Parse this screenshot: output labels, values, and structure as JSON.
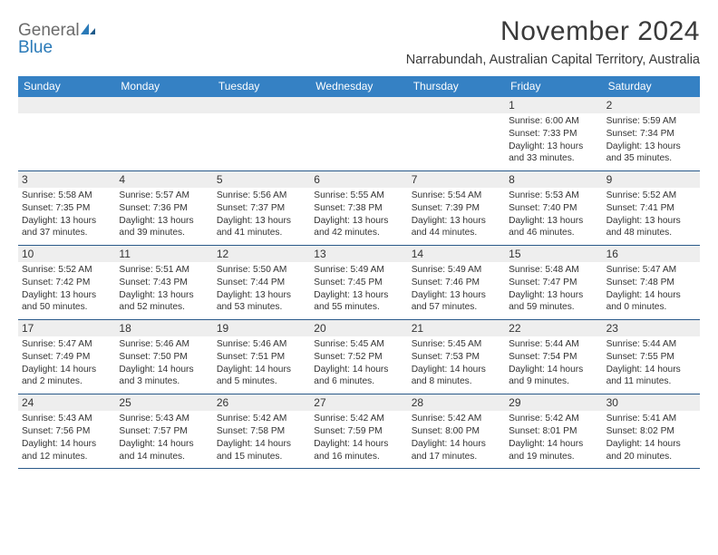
{
  "logo": {
    "line1": "General",
    "line2": "Blue"
  },
  "title": "November 2024",
  "location": "Narrabundah, Australian Capital Territory, Australia",
  "colors": {
    "header_bg": "#3581c4",
    "header_text": "#ffffff",
    "daynum_bg": "#eeeeee",
    "week_border": "#2a5a8a",
    "text": "#333333",
    "logo_gray": "#6b6b6b",
    "logo_blue": "#2a7ab8"
  },
  "day_names": [
    "Sunday",
    "Monday",
    "Tuesday",
    "Wednesday",
    "Thursday",
    "Friday",
    "Saturday"
  ],
  "weeks": [
    [
      {
        "n": "",
        "t": ""
      },
      {
        "n": "",
        "t": ""
      },
      {
        "n": "",
        "t": ""
      },
      {
        "n": "",
        "t": ""
      },
      {
        "n": "",
        "t": ""
      },
      {
        "n": "1",
        "t": "Sunrise: 6:00 AM\nSunset: 7:33 PM\nDaylight: 13 hours and 33 minutes."
      },
      {
        "n": "2",
        "t": "Sunrise: 5:59 AM\nSunset: 7:34 PM\nDaylight: 13 hours and 35 minutes."
      }
    ],
    [
      {
        "n": "3",
        "t": "Sunrise: 5:58 AM\nSunset: 7:35 PM\nDaylight: 13 hours and 37 minutes."
      },
      {
        "n": "4",
        "t": "Sunrise: 5:57 AM\nSunset: 7:36 PM\nDaylight: 13 hours and 39 minutes."
      },
      {
        "n": "5",
        "t": "Sunrise: 5:56 AM\nSunset: 7:37 PM\nDaylight: 13 hours and 41 minutes."
      },
      {
        "n": "6",
        "t": "Sunrise: 5:55 AM\nSunset: 7:38 PM\nDaylight: 13 hours and 42 minutes."
      },
      {
        "n": "7",
        "t": "Sunrise: 5:54 AM\nSunset: 7:39 PM\nDaylight: 13 hours and 44 minutes."
      },
      {
        "n": "8",
        "t": "Sunrise: 5:53 AM\nSunset: 7:40 PM\nDaylight: 13 hours and 46 minutes."
      },
      {
        "n": "9",
        "t": "Sunrise: 5:52 AM\nSunset: 7:41 PM\nDaylight: 13 hours and 48 minutes."
      }
    ],
    [
      {
        "n": "10",
        "t": "Sunrise: 5:52 AM\nSunset: 7:42 PM\nDaylight: 13 hours and 50 minutes."
      },
      {
        "n": "11",
        "t": "Sunrise: 5:51 AM\nSunset: 7:43 PM\nDaylight: 13 hours and 52 minutes."
      },
      {
        "n": "12",
        "t": "Sunrise: 5:50 AM\nSunset: 7:44 PM\nDaylight: 13 hours and 53 minutes."
      },
      {
        "n": "13",
        "t": "Sunrise: 5:49 AM\nSunset: 7:45 PM\nDaylight: 13 hours and 55 minutes."
      },
      {
        "n": "14",
        "t": "Sunrise: 5:49 AM\nSunset: 7:46 PM\nDaylight: 13 hours and 57 minutes."
      },
      {
        "n": "15",
        "t": "Sunrise: 5:48 AM\nSunset: 7:47 PM\nDaylight: 13 hours and 59 minutes."
      },
      {
        "n": "16",
        "t": "Sunrise: 5:47 AM\nSunset: 7:48 PM\nDaylight: 14 hours and 0 minutes."
      }
    ],
    [
      {
        "n": "17",
        "t": "Sunrise: 5:47 AM\nSunset: 7:49 PM\nDaylight: 14 hours and 2 minutes."
      },
      {
        "n": "18",
        "t": "Sunrise: 5:46 AM\nSunset: 7:50 PM\nDaylight: 14 hours and 3 minutes."
      },
      {
        "n": "19",
        "t": "Sunrise: 5:46 AM\nSunset: 7:51 PM\nDaylight: 14 hours and 5 minutes."
      },
      {
        "n": "20",
        "t": "Sunrise: 5:45 AM\nSunset: 7:52 PM\nDaylight: 14 hours and 6 minutes."
      },
      {
        "n": "21",
        "t": "Sunrise: 5:45 AM\nSunset: 7:53 PM\nDaylight: 14 hours and 8 minutes."
      },
      {
        "n": "22",
        "t": "Sunrise: 5:44 AM\nSunset: 7:54 PM\nDaylight: 14 hours and 9 minutes."
      },
      {
        "n": "23",
        "t": "Sunrise: 5:44 AM\nSunset: 7:55 PM\nDaylight: 14 hours and 11 minutes."
      }
    ],
    [
      {
        "n": "24",
        "t": "Sunrise: 5:43 AM\nSunset: 7:56 PM\nDaylight: 14 hours and 12 minutes."
      },
      {
        "n": "25",
        "t": "Sunrise: 5:43 AM\nSunset: 7:57 PM\nDaylight: 14 hours and 14 minutes."
      },
      {
        "n": "26",
        "t": "Sunrise: 5:42 AM\nSunset: 7:58 PM\nDaylight: 14 hours and 15 minutes."
      },
      {
        "n": "27",
        "t": "Sunrise: 5:42 AM\nSunset: 7:59 PM\nDaylight: 14 hours and 16 minutes."
      },
      {
        "n": "28",
        "t": "Sunrise: 5:42 AM\nSunset: 8:00 PM\nDaylight: 14 hours and 17 minutes."
      },
      {
        "n": "29",
        "t": "Sunrise: 5:42 AM\nSunset: 8:01 PM\nDaylight: 14 hours and 19 minutes."
      },
      {
        "n": "30",
        "t": "Sunrise: 5:41 AM\nSunset: 8:02 PM\nDaylight: 14 hours and 20 minutes."
      }
    ]
  ]
}
